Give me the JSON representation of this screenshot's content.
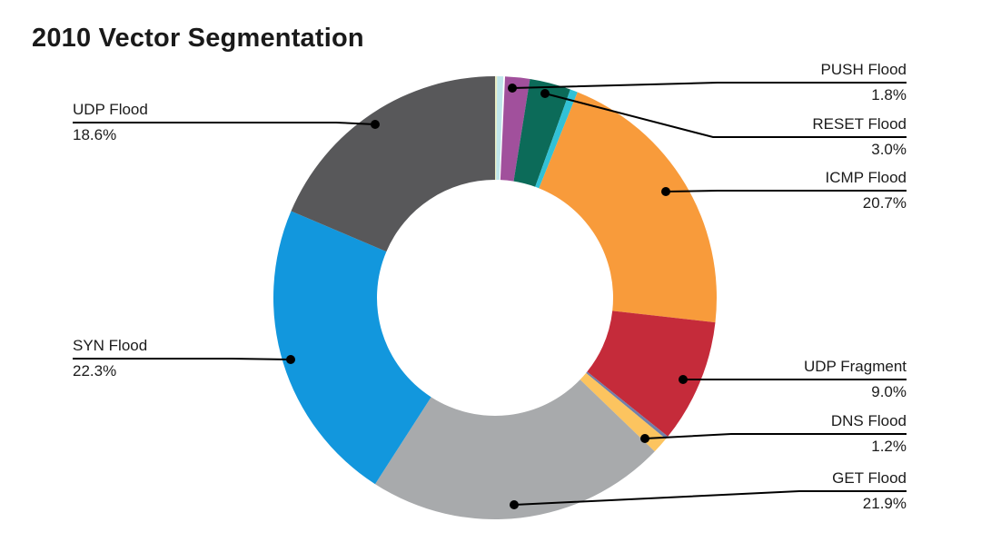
{
  "chart_data": {
    "type": "pie",
    "subtype": "donut",
    "title": "2010 Vector Segmentation",
    "legend_position": "none",
    "label_style": "callout-leader-lines",
    "background_color": "#ffffff",
    "slices": [
      {
        "key": "sliver_1",
        "label": "",
        "value": 0.15,
        "color": "#e9ecc4",
        "labeled": false
      },
      {
        "key": "sliver_2",
        "label": "",
        "value": 0.45,
        "color": "#bfe5ea",
        "labeled": false
      },
      {
        "key": "sliver_3",
        "label": "",
        "value": 0.12,
        "color": "#ffffff",
        "labeled": false
      },
      {
        "key": "push_flood",
        "label": "PUSH Flood",
        "value": 1.8,
        "color": "#a1509c",
        "labeled": true
      },
      {
        "key": "reset_flood",
        "label": "RESET Flood",
        "value": 3.0,
        "color": "#0c6b59",
        "labeled": true
      },
      {
        "key": "sliver_4",
        "label": "",
        "value": 0.55,
        "color": "#32c1d6",
        "labeled": false
      },
      {
        "key": "icmp_flood",
        "label": "ICMP Flood",
        "value": 20.7,
        "color": "#f89b3b",
        "labeled": true
      },
      {
        "key": "udp_fragment",
        "label": "UDP Fragment",
        "value": 9.0,
        "color": "#c52b3a",
        "labeled": true
      },
      {
        "key": "sliver_5",
        "label": "",
        "value": 0.23,
        "color": "#7080aa",
        "labeled": false
      },
      {
        "key": "dns_flood",
        "label": "DNS Flood",
        "value": 1.2,
        "color": "#fcc45f",
        "labeled": true
      },
      {
        "key": "get_flood",
        "label": "GET Flood",
        "value": 21.9,
        "color": "#a8aaac",
        "labeled": true
      },
      {
        "key": "syn_flood",
        "label": "SYN Flood",
        "value": 22.3,
        "color": "#1297dd",
        "labeled": true
      },
      {
        "key": "udp_flood",
        "label": "UDP Flood",
        "value": 18.6,
        "color": "#58585a",
        "labeled": true
      }
    ],
    "callout_percent_format": "one-decimal-percent",
    "line_color": "#000000",
    "text_color": "#1b1b1b"
  }
}
